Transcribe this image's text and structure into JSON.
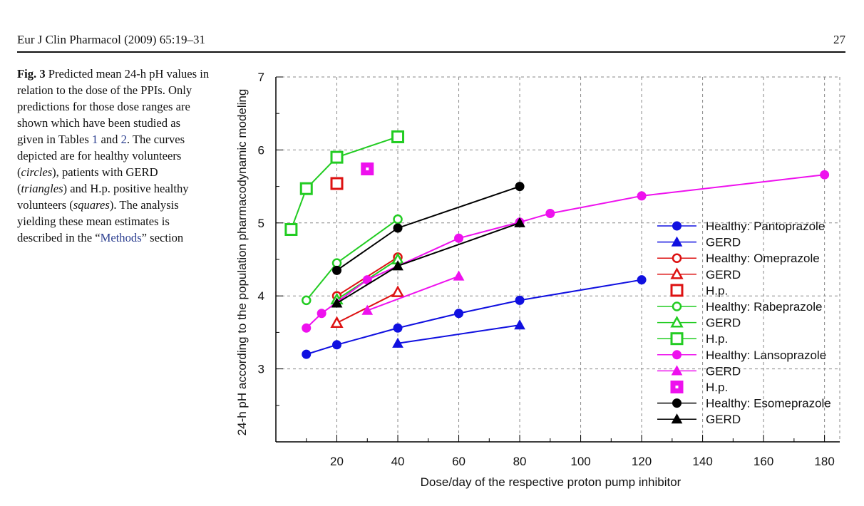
{
  "header": {
    "journal": "Eur J Clin Pharmacol (2009) 65:19–31",
    "page": "27"
  },
  "caption": {
    "label": "Fig. 3",
    "s1": " Predicted mean 24-h pH values in relation to the dose of the PPIs. Only predictions for those dose ranges are shown which have been studied as given in Tables ",
    "ref1": "1",
    "s2": " and ",
    "ref2": "2",
    "s3": ". The curves depicted are for healthy volunteers (",
    "i1": "circles",
    "s4": "), patients with GERD (",
    "i2": "triangles",
    "s5": ") and H.p. positive healthy volunteers (",
    "i3": "squares",
    "s6": "). The analysis yielding these mean estimates is described in the “",
    "ref3": "Methods",
    "s7": "” section"
  },
  "chart_data": {
    "type": "line",
    "xlabel": "Dose/day of the respective proton pump inhibitor",
    "ylabel": "24-h pH according to the population pharmacodynamic modeling",
    "xlim": [
      0,
      185
    ],
    "ylim": [
      2,
      7
    ],
    "xticks": [
      20,
      40,
      60,
      80,
      100,
      120,
      140,
      160,
      180
    ],
    "yticks": [
      3,
      4,
      5,
      6,
      7
    ],
    "grid": "dashed",
    "legend_position": "right",
    "series": [
      {
        "name": "Healthy: Pantoprazole",
        "color": "#1010e0",
        "marker": "circle",
        "filled": true,
        "line": true,
        "points": [
          [
            10,
            3.2
          ],
          [
            20,
            3.33
          ],
          [
            40,
            3.56
          ],
          [
            60,
            3.76
          ],
          [
            80,
            3.94
          ],
          [
            120,
            4.22
          ]
        ]
      },
      {
        "name": "GERD",
        "color": "#1010e0",
        "marker": "triangle",
        "filled": true,
        "line": true,
        "points": [
          [
            40,
            3.35
          ],
          [
            80,
            3.6
          ]
        ]
      },
      {
        "name": "Healthy: Omeprazole",
        "color": "#dd1111",
        "marker": "circle",
        "filled": false,
        "line": true,
        "points": [
          [
            20,
            4.0
          ],
          [
            40,
            4.53
          ]
        ]
      },
      {
        "name": "GERD",
        "color": "#dd1111",
        "marker": "triangle",
        "filled": false,
        "line": true,
        "points": [
          [
            20,
            3.63
          ],
          [
            40,
            4.05
          ]
        ]
      },
      {
        "name": "H.p.",
        "color": "#dd1111",
        "marker": "square",
        "filled": false,
        "line": false,
        "points": [
          [
            20,
            5.54
          ]
        ]
      },
      {
        "name": "Healthy: Rabeprazole",
        "color": "#22cc22",
        "marker": "circle",
        "filled": false,
        "line": true,
        "points": [
          [
            10,
            3.94
          ],
          [
            20,
            4.45
          ],
          [
            40,
            5.05
          ]
        ]
      },
      {
        "name": "GERD",
        "color": "#22cc22",
        "marker": "triangle",
        "filled": false,
        "line": true,
        "points": [
          [
            20,
            3.95
          ],
          [
            40,
            4.5
          ]
        ]
      },
      {
        "name": "H.p.",
        "color": "#22cc22",
        "marker": "square",
        "filled": false,
        "line": true,
        "points": [
          [
            5,
            4.91
          ],
          [
            10,
            5.47
          ],
          [
            20,
            5.9
          ],
          [
            40,
            6.18
          ]
        ]
      },
      {
        "name": "Healthy: Lansoprazole",
        "color": "#ee11ee",
        "marker": "circle",
        "filled": true,
        "line": true,
        "points": [
          [
            10,
            3.56
          ],
          [
            15,
            3.76
          ],
          [
            30,
            4.22
          ],
          [
            60,
            4.79
          ],
          [
            80,
            5.01
          ],
          [
            90,
            5.13
          ],
          [
            120,
            5.37
          ],
          [
            180,
            5.66
          ]
        ]
      },
      {
        "name": "GERD",
        "color": "#ee11ee",
        "marker": "triangle",
        "filled": true,
        "line": true,
        "points": [
          [
            30,
            3.8
          ],
          [
            60,
            4.27
          ]
        ]
      },
      {
        "name": "H.p.",
        "color": "#ee11ee",
        "marker": "squaredot",
        "filled": true,
        "line": false,
        "points": [
          [
            30,
            5.74
          ]
        ]
      },
      {
        "name": "Healthy: Esomeprazole",
        "color": "#000000",
        "marker": "circle",
        "filled": true,
        "line": true,
        "points": [
          [
            20,
            4.35
          ],
          [
            40,
            4.93
          ],
          [
            80,
            5.5
          ]
        ]
      },
      {
        "name": "GERD",
        "color": "#000000",
        "marker": "triangle",
        "filled": true,
        "line": true,
        "points": [
          [
            20,
            3.9
          ],
          [
            40,
            4.41
          ],
          [
            80,
            5.0
          ]
        ]
      }
    ]
  }
}
